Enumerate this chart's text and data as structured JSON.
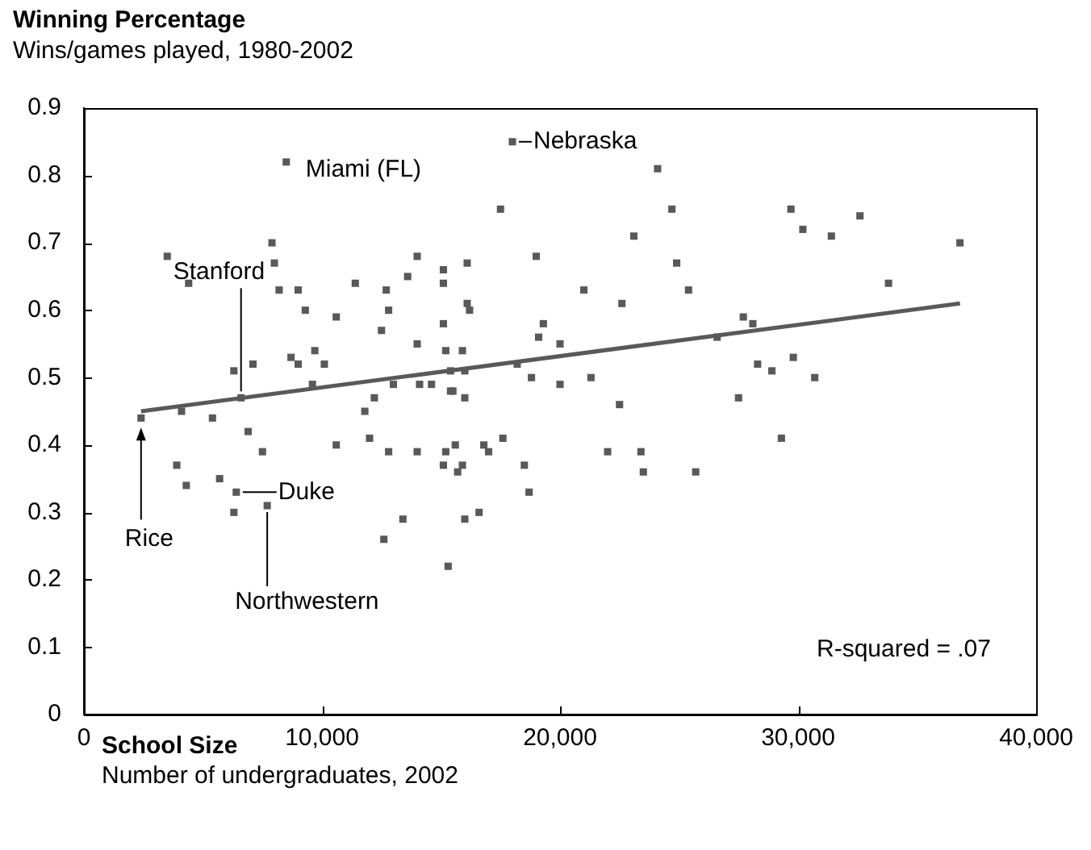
{
  "chart_data": {
    "type": "scatter",
    "title": "Winning Percentage",
    "subtitle": "Wins/games played, 1980-2002",
    "xlabel": "School Size",
    "annotations": [
      "R-squared = .07",
      "Number of undergraduates, 2002",
      {
        "text": "Miami (FL)",
        "x": 8500,
        "y": 0.82
      },
      {
        "text": "Nebraska",
        "x": 18000,
        "y": 0.85
      },
      {
        "text": "Stanford",
        "x": 6600,
        "y": 0.47
      },
      {
        "text": "Duke",
        "x": 6400,
        "y": 0.33
      },
      {
        "text": "Rice",
        "x": 2400,
        "y": 0.44
      },
      {
        "text": "Northwestern",
        "x": 7700,
        "y": 0.31
      }
    ],
    "series": [
      {
        "marker": "square",
        "color": "#595959",
        "x": [
          8500,
          3500,
          4400,
          7900,
          8000,
          8200,
          9000,
          9300,
          10600,
          9700,
          8700,
          9000,
          10100,
          6300,
          7100,
          9600,
          6600,
          2400,
          4100,
          5400,
          6900,
          7500,
          10600,
          3900,
          4300,
          5700,
          6400,
          6300,
          7700,
          18000,
          17500,
          14000,
          15100,
          16100,
          19000,
          11400,
          12700,
          13600,
          15100,
          21000,
          12800,
          16100,
          16200,
          12500,
          15100,
          19300,
          19100,
          20000,
          14000,
          15200,
          15900,
          15400,
          16000,
          18200,
          18800,
          20000,
          13000,
          14100,
          14600,
          15500,
          15400,
          16000,
          12200,
          11800,
          12000,
          12800,
          14000,
          15600,
          15200,
          15100,
          15900,
          15700,
          16800,
          17000,
          17600,
          18500,
          18700,
          13400,
          12600,
          16600,
          16000,
          15300,
          24100,
          24700,
          23100,
          24900,
          25400,
          22600,
          29700,
          30200,
          31400,
          27700,
          28100,
          26600,
          21300,
          28300,
          28900,
          29800,
          30700,
          22500,
          27500,
          22000,
          23400,
          29300,
          23500,
          25700,
          32600,
          36800,
          33800
        ],
        "values": [
          0.82,
          0.68,
          0.64,
          0.7,
          0.67,
          0.63,
          0.63,
          0.6,
          0.59,
          0.54,
          0.53,
          0.52,
          0.52,
          0.51,
          0.52,
          0.49,
          0.47,
          0.44,
          0.45,
          0.44,
          0.42,
          0.39,
          0.4,
          0.37,
          0.34,
          0.35,
          0.33,
          0.3,
          0.31,
          0.85,
          0.75,
          0.68,
          0.66,
          0.67,
          0.68,
          0.64,
          0.63,
          0.65,
          0.64,
          0.63,
          0.6,
          0.61,
          0.6,
          0.57,
          0.58,
          0.58,
          0.56,
          0.55,
          0.55,
          0.54,
          0.54,
          0.51,
          0.51,
          0.52,
          0.5,
          0.49,
          0.49,
          0.49,
          0.49,
          0.48,
          0.48,
          0.47,
          0.47,
          0.45,
          0.41,
          0.39,
          0.39,
          0.4,
          0.39,
          0.37,
          0.37,
          0.36,
          0.4,
          0.39,
          0.41,
          0.37,
          0.33,
          0.29,
          0.26,
          0.3,
          0.29,
          0.22,
          0.81,
          0.75,
          0.71,
          0.67,
          0.63,
          0.61,
          0.75,
          0.72,
          0.71,
          0.59,
          0.58,
          0.56,
          0.5,
          0.52,
          0.51,
          0.53,
          0.5,
          0.46,
          0.47,
          0.39,
          0.39,
          0.41,
          0.36,
          0.36,
          0.74,
          0.7,
          0.64
        ]
      },
      {
        "type": "line",
        "color": "#595959",
        "x": [
          2400,
          36800
        ],
        "values": [
          0.45,
          0.61
        ]
      }
    ],
    "xlim": [
      0,
      40000
    ],
    "xticks": [
      0,
      {
        "value": 10000,
        "label": "10,000"
      },
      {
        "value": 20000,
        "label": "20,000"
      },
      {
        "value": 30000,
        "label": "30,000"
      },
      {
        "value": 40000,
        "label": "40,000"
      }
    ],
    "ylim": [
      0,
      0.9
    ],
    "yticks": [
      0,
      0.1,
      0.2,
      0.3,
      0.4,
      0.5,
      0.6,
      0.7,
      0.8,
      0.9
    ]
  }
}
